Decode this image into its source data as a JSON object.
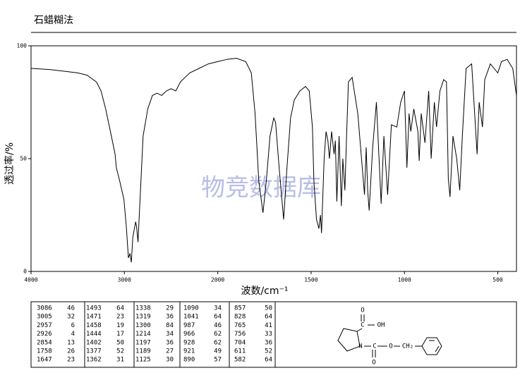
{
  "title": "石蜡糊法",
  "chart_data": {
    "type": "line",
    "xlabel": "波数/cm⁻¹",
    "ylabel": "透过率/%",
    "watermark": "物竞数据库",
    "xlim": [
      4000,
      400
    ],
    "x_scale_break": 2000,
    "ylim": [
      0,
      100
    ],
    "xticks": [
      4000,
      3000,
      2000,
      1500,
      1000,
      500
    ],
    "yticks": [
      0,
      50,
      100
    ],
    "series": [
      {
        "color": "#000000",
        "x": [
          4000,
          3800,
          3600,
          3500,
          3400,
          3300,
          3250,
          3200,
          3150,
          3100,
          3086,
          3050,
          3005,
          2980,
          2957,
          2940,
          2926,
          2910,
          2880,
          2870,
          2854,
          2800,
          2750,
          2700,
          2650,
          2600,
          2550,
          2500,
          2450,
          2400,
          2300,
          2200,
          2100,
          2000,
          1950,
          1900,
          1850,
          1820,
          1800,
          1780,
          1758,
          1740,
          1720,
          1700,
          1690,
          1670,
          1647,
          1630,
          1610,
          1590,
          1560,
          1530,
          1510,
          1493,
          1485,
          1471,
          1458,
          1450,
          1444,
          1430,
          1420,
          1410,
          1402,
          1390,
          1377,
          1370,
          1362,
          1350,
          1338,
          1330,
          1319,
          1310,
          1300,
          1280,
          1250,
          1214,
          1205,
          1197,
          1189,
          1170,
          1150,
          1125,
          1110,
          1090,
          1070,
          1041,
          1020,
          1000,
          987,
          975,
          966,
          950,
          928,
          921,
          910,
          890,
          870,
          857,
          840,
          828,
          810,
          790,
          775,
          765,
          756,
          740,
          720,
          704,
          690,
          670,
          640,
          611,
          600,
          582,
          570,
          540,
          500,
          480,
          450,
          420,
          400
        ],
        "values": [
          90,
          89.5,
          88.5,
          88,
          87,
          84,
          80,
          72,
          62,
          52,
          46,
          40,
          32,
          20,
          6,
          8,
          4,
          15,
          22,
          20,
          13,
          60,
          72,
          78,
          79,
          78,
          80,
          81,
          80,
          84,
          88,
          90,
          92,
          93,
          94,
          94.5,
          93,
          88,
          70,
          40,
          26,
          40,
          60,
          68,
          66,
          45,
          23,
          45,
          68,
          76,
          80,
          82,
          80,
          64,
          40,
          23,
          19,
          25,
          17,
          50,
          62,
          58,
          50,
          62,
          52,
          58,
          31,
          60,
          29,
          50,
          36,
          60,
          84,
          86,
          70,
          34,
          55,
          36,
          27,
          55,
          75,
          30,
          60,
          34,
          65,
          64,
          75,
          80,
          46,
          70,
          62,
          72,
          62,
          49,
          70,
          57,
          80,
          50,
          75,
          64,
          80,
          85,
          84,
          41,
          33,
          60,
          50,
          36,
          60,
          90,
          92,
          52,
          75,
          64,
          85,
          92,
          88,
          93,
          94,
          90,
          78
        ]
      }
    ]
  },
  "peak_table": [
    [
      [
        3086,
        46
      ],
      [
        3005,
        32
      ],
      [
        2957,
        6
      ],
      [
        2926,
        4
      ],
      [
        2854,
        13
      ],
      [
        1758,
        26
      ],
      [
        1647,
        23
      ]
    ],
    [
      [
        1493,
        64
      ],
      [
        1471,
        23
      ],
      [
        1458,
        19
      ],
      [
        1444,
        17
      ],
      [
        1402,
        50
      ],
      [
        1377,
        52
      ],
      [
        1362,
        31
      ]
    ],
    [
      [
        1338,
        29
      ],
      [
        1319,
        36
      ],
      [
        1300,
        84
      ],
      [
        1214,
        34
      ],
      [
        1197,
        36
      ],
      [
        1189,
        27
      ],
      [
        1125,
        30
      ]
    ],
    [
      [
        1090,
        34
      ],
      [
        1041,
        64
      ],
      [
        987,
        46
      ],
      [
        966,
        62
      ],
      [
        928,
        62
      ],
      [
        921,
        49
      ],
      [
        890,
        57
      ]
    ],
    [
      [
        857,
        50
      ],
      [
        828,
        64
      ],
      [
        765,
        41
      ],
      [
        756,
        33
      ],
      [
        704,
        36
      ],
      [
        611,
        52
      ],
      [
        582,
        64
      ]
    ]
  ],
  "structure_labels": [
    "O",
    "C",
    "OH",
    "N",
    "C",
    "O",
    "O",
    "CH₂"
  ]
}
